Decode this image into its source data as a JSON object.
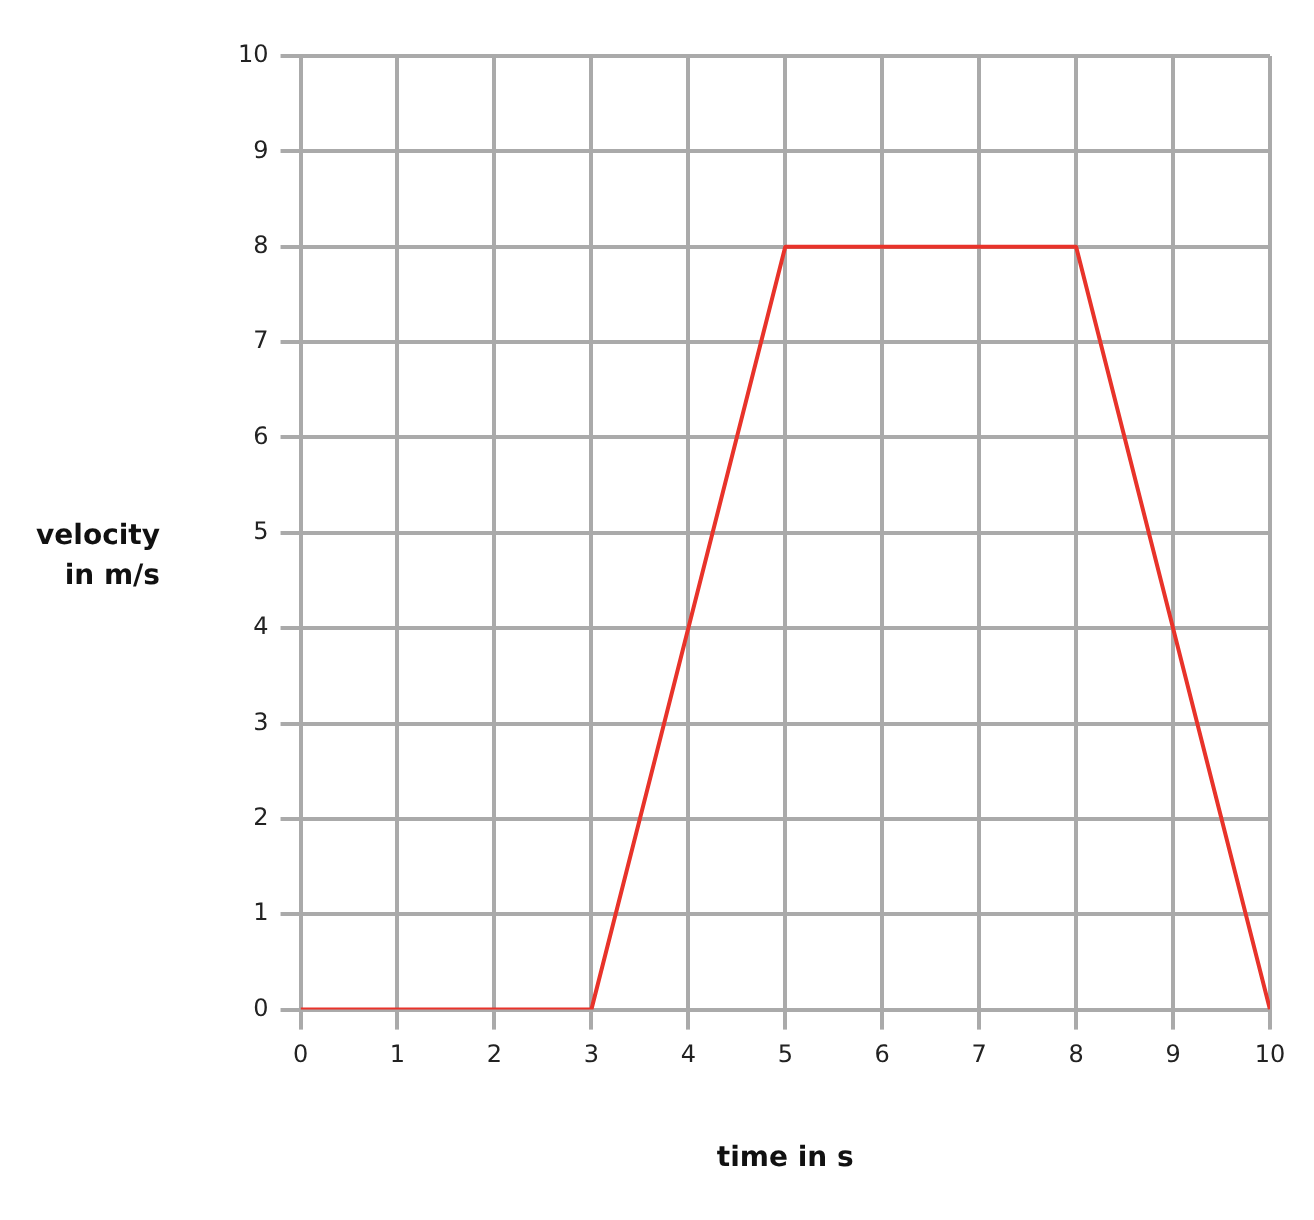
{
  "chart_data": {
    "type": "line",
    "xlabel": "time in s",
    "ylabel": "velocity in m/s",
    "x": [
      0,
      3,
      5,
      8,
      10
    ],
    "series": [
      {
        "color": "#e8332a",
        "values": [
          0,
          0,
          8,
          8,
          0
        ]
      }
    ],
    "xlim": [
      0,
      10
    ],
    "ylim": [
      0,
      10
    ],
    "xticks": [
      0,
      1,
      2,
      3,
      4,
      5,
      6,
      7,
      8,
      9,
      10
    ],
    "yticks": [
      0,
      1,
      2,
      3,
      4,
      5,
      6,
      7,
      8,
      9,
      10
    ],
    "grid": true,
    "marker": "none",
    "legend": false
  }
}
